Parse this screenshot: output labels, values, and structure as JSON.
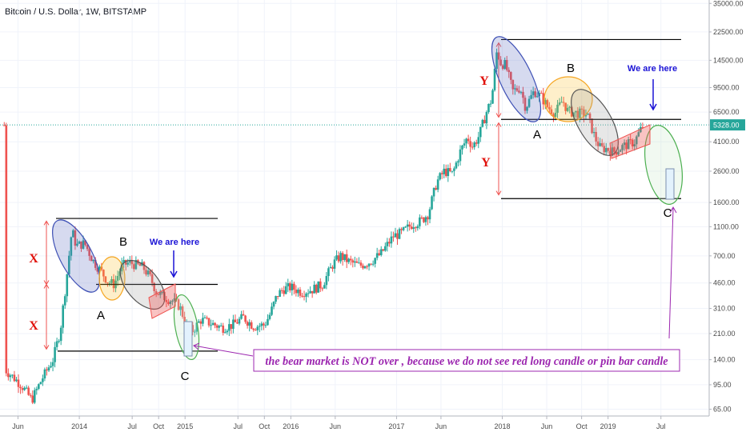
{
  "chart_data": {
    "type": "candlestick",
    "title": "Bitcoin / U.S. Dollar, 1W, BITSTAMP",
    "y_scale": "log",
    "ylim": [
      60,
      36000
    ],
    "y_ticks": [
      {
        "value": 35000,
        "label": "35000.00"
      },
      {
        "value": 22500,
        "label": "22500.00"
      },
      {
        "value": 14500,
        "label": "14500.00"
      },
      {
        "value": 9500,
        "label": "9500.00"
      },
      {
        "value": 6500,
        "label": "6500.00"
      },
      {
        "value": 4100,
        "label": "4100.00"
      },
      {
        "value": 2600,
        "label": "2600.00"
      },
      {
        "value": 1600,
        "label": "1600.00"
      },
      {
        "value": 1100,
        "label": "1100.00"
      },
      {
        "value": 700,
        "label": "700.00"
      },
      {
        "value": 460,
        "label": "460.00"
      },
      {
        "value": 310,
        "label": "310.00"
      },
      {
        "value": 210,
        "label": "210.00"
      },
      {
        "value": 140,
        "label": "140.00"
      },
      {
        "value": 95,
        "label": "95.00"
      },
      {
        "value": 65,
        "label": "65.00"
      }
    ],
    "last_price": {
      "value": 5328,
      "label": "5328.00",
      "color": "#26a69a"
    },
    "x_ticks": [
      {
        "label": "Jun",
        "t": 2013.42
      },
      {
        "label": "2014",
        "t": 2014.0
      },
      {
        "label": "Jul",
        "t": 2014.5
      },
      {
        "label": "Oct",
        "t": 2014.75
      },
      {
        "label": "2015",
        "t": 2015.0
      },
      {
        "label": "Jul",
        "t": 2015.5
      },
      {
        "label": "Oct",
        "t": 2015.75
      },
      {
        "label": "2016",
        "t": 2016.0
      },
      {
        "label": "Jun",
        "t": 2016.42
      },
      {
        "label": "2017",
        "t": 2017.0
      },
      {
        "label": "Jun",
        "t": 2017.42
      },
      {
        "label": "2018",
        "t": 2018.0
      },
      {
        "label": "Jun",
        "t": 2018.42
      },
      {
        "label": "Oct",
        "t": 2018.75
      },
      {
        "label": "2019",
        "t": 2019.0
      },
      {
        "label": "Jul",
        "t": 2019.5
      }
    ],
    "price_path": [
      [
        2013.3,
        120
      ],
      [
        2013.45,
        95
      ],
      [
        2013.55,
        75
      ],
      [
        2013.65,
        105
      ],
      [
        2013.75,
        140
      ],
      [
        2013.82,
        220
      ],
      [
        2013.88,
        500
      ],
      [
        2013.93,
        1050
      ],
      [
        2013.97,
        820
      ],
      [
        2014.05,
        850
      ],
      [
        2014.13,
        650
      ],
      [
        2014.2,
        560
      ],
      [
        2014.27,
        470
      ],
      [
        2014.33,
        450
      ],
      [
        2014.4,
        600
      ],
      [
        2014.47,
        630
      ],
      [
        2014.53,
        610
      ],
      [
        2014.6,
        590
      ],
      [
        2014.67,
        500
      ],
      [
        2014.73,
        400
      ],
      [
        2014.8,
        370
      ],
      [
        2014.88,
        350
      ],
      [
        2014.95,
        320
      ],
      [
        2015.02,
        230
      ],
      [
        2015.07,
        220
      ],
      [
        2015.15,
        260
      ],
      [
        2015.25,
        245
      ],
      [
        2015.35,
        230
      ],
      [
        2015.45,
        240
      ],
      [
        2015.55,
        270
      ],
      [
        2015.65,
        235
      ],
      [
        2015.75,
        240
      ],
      [
        2015.8,
        280
      ],
      [
        2015.87,
        380
      ],
      [
        2015.93,
        420
      ],
      [
        2016.0,
        430
      ],
      [
        2016.1,
        400
      ],
      [
        2016.2,
        415
      ],
      [
        2016.3,
        450
      ],
      [
        2016.4,
        620
      ],
      [
        2016.47,
        700
      ],
      [
        2016.55,
        640
      ],
      [
        2016.65,
        600
      ],
      [
        2016.75,
        640
      ],
      [
        2016.85,
        720
      ],
      [
        2016.97,
        950
      ],
      [
        2017.05,
        1000
      ],
      [
        2017.15,
        1150
      ],
      [
        2017.23,
        1200
      ],
      [
        2017.3,
        1350
      ],
      [
        2017.38,
        2200
      ],
      [
        2017.45,
        2600
      ],
      [
        2017.53,
        2500
      ],
      [
        2017.6,
        3500
      ],
      [
        2017.67,
        4400
      ],
      [
        2017.72,
        3800
      ],
      [
        2017.78,
        4500
      ],
      [
        2017.85,
        6500
      ],
      [
        2017.9,
        8000
      ],
      [
        2017.95,
        17000
      ],
      [
        2017.98,
        14000
      ],
      [
        2018.03,
        13500
      ],
      [
        2018.1,
        9000
      ],
      [
        2018.17,
        9500
      ],
      [
        2018.22,
        7000
      ],
      [
        2018.3,
        9000
      ],
      [
        2018.37,
        8200
      ],
      [
        2018.43,
        7000
      ],
      [
        2018.5,
        6400
      ],
      [
        2018.57,
        7800
      ],
      [
        2018.62,
        6600
      ],
      [
        2018.7,
        6400
      ],
      [
        2018.8,
        6300
      ],
      [
        2018.88,
        4300
      ],
      [
        2018.93,
        3700
      ],
      [
        2018.98,
        3700
      ],
      [
        2019.05,
        3500
      ],
      [
        2019.15,
        3850
      ],
      [
        2019.25,
        4100
      ],
      [
        2019.33,
        5300
      ]
    ],
    "annotations": [
      {
        "text": "Bitcoin / U.S. Dollar, 1W, BITSTAMP",
        "kind": "title"
      },
      {
        "text": "X",
        "kind": "label"
      },
      {
        "text": "X",
        "kind": "label"
      },
      {
        "text": "A",
        "kind": "label"
      },
      {
        "text": "B",
        "kind": "label"
      },
      {
        "text": "C",
        "kind": "label"
      },
      {
        "text": "We are here",
        "kind": "callout"
      },
      {
        "text": "Y",
        "kind": "label"
      },
      {
        "text": "Y",
        "kind": "label"
      },
      {
        "text": "A",
        "kind": "label"
      },
      {
        "text": "B",
        "kind": "label"
      },
      {
        "text": "C",
        "kind": "label"
      },
      {
        "text": "We are here",
        "kind": "callout"
      },
      {
        "text": "the bear market is NOT over , because we do not see red long candle or pin bar candle",
        "kind": "note"
      }
    ],
    "colors": {
      "up": "#26a69a",
      "down": "#ef5350",
      "label_red": "#e0120c",
      "callout_blue": "#1b13d6",
      "note_purple": "#9c27b0",
      "ellipse_blue": "#3f51b5",
      "ellipse_orange": "#f5a623",
      "ellipse_gray": "#555555",
      "ellipse_green": "#4caf50"
    }
  }
}
